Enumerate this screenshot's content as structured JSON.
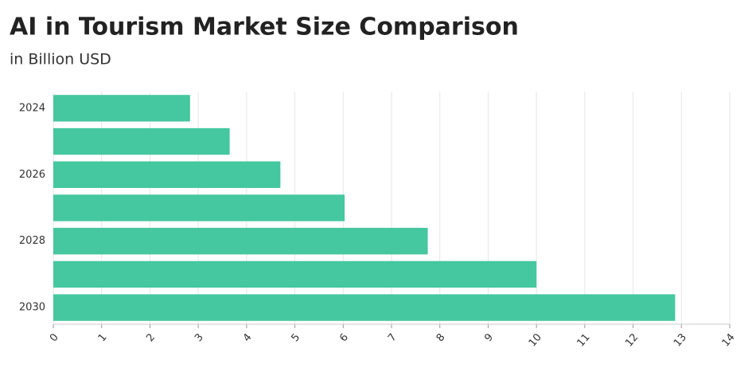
{
  "chart_data": {
    "type": "bar",
    "title": "AI in Tourism Market Size Comparison",
    "subtitle": "in Billion USD",
    "categories": [
      "2024",
      null,
      "2026",
      null,
      "2028",
      null,
      "2030"
    ],
    "values": [
      2.83,
      3.65,
      4.7,
      6.03,
      7.75,
      10.0,
      12.87
    ],
    "color": "#45c79f",
    "xlim": [
      0,
      14
    ],
    "xticks": [
      0,
      1,
      2,
      3,
      4,
      5,
      6,
      7,
      8,
      9,
      10,
      11,
      12,
      13,
      14
    ],
    "grid": true
  }
}
